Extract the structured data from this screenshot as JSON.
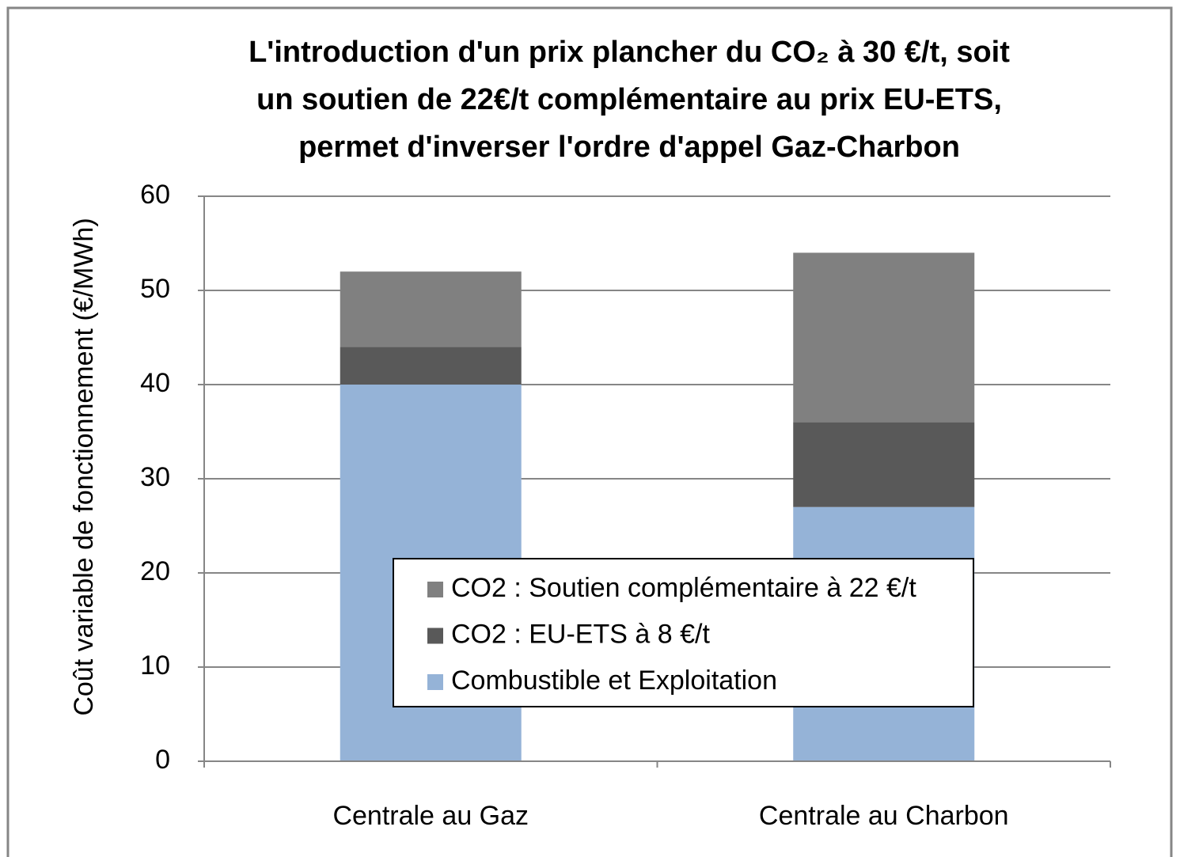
{
  "chart_data": {
    "type": "stacked_bar",
    "title": [
      "L'introduction d'un prix plancher du CO₂ à 30 €/t, soit",
      "un soutien de 22€/t complémentaire au prix EU-ETS,",
      "permet  d'inverser l'ordre d'appel Gaz-Charbon"
    ],
    "y_label": "Coût variable de fonctionnement  (€/MWh)",
    "categories": [
      "Centrale au Gaz",
      "Centrale au Charbon"
    ],
    "series": [
      {
        "name": "Combustible et Exploitation",
        "color": "#95b3d7",
        "values": [
          40,
          27
        ]
      },
      {
        "name": "CO2 : EU-ETS à 8 €/t",
        "color": "#595959",
        "values": [
          4,
          9
        ]
      },
      {
        "name": "CO2 : Soutien complémentaire à 22 €/t",
        "color": "#808080",
        "values": [
          8,
          18
        ]
      }
    ],
    "ylim": [
      0,
      60
    ],
    "yticks": [
      0,
      10,
      20,
      30,
      40,
      50,
      60
    ],
    "grid": true
  }
}
